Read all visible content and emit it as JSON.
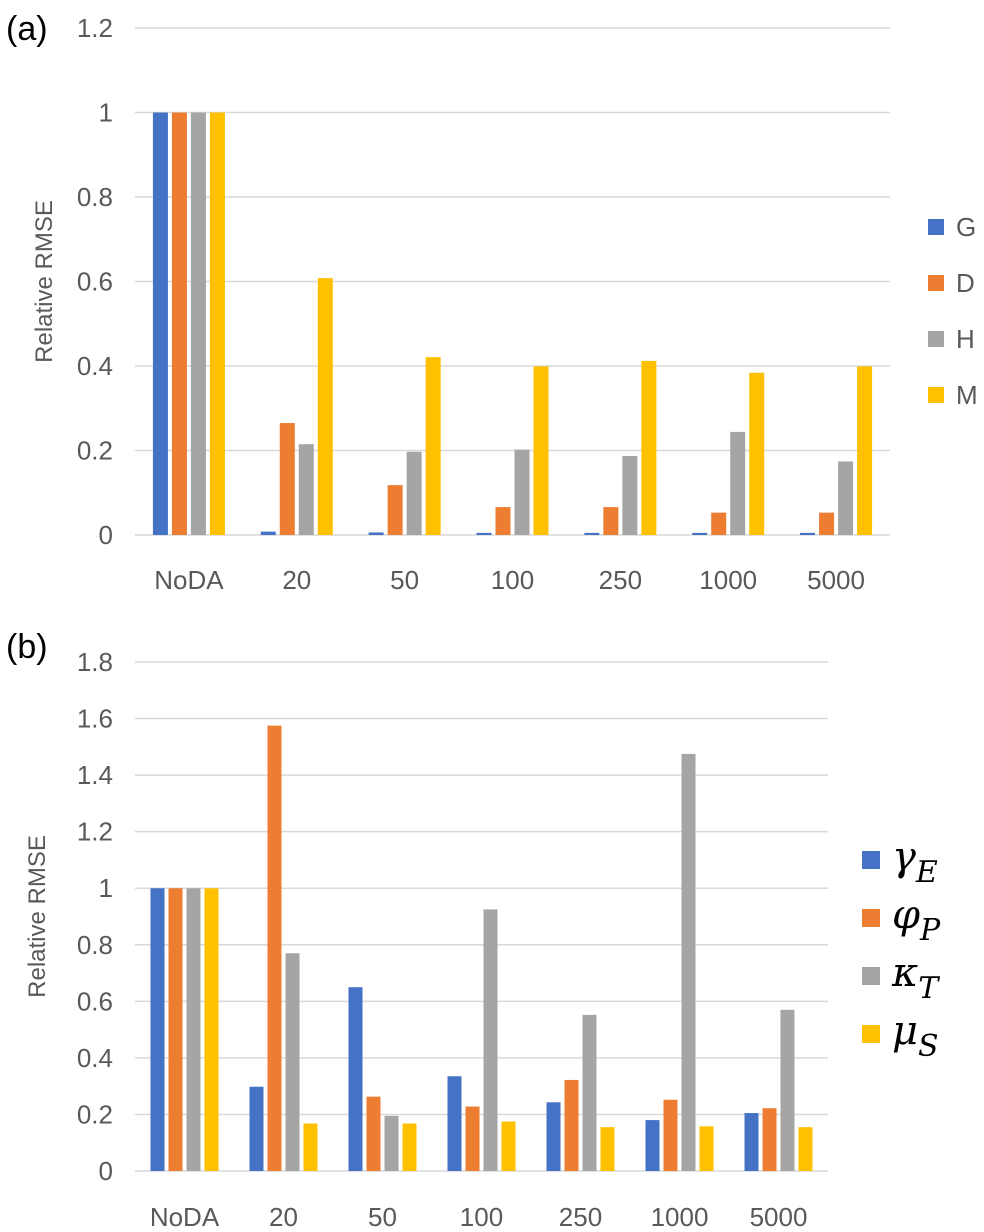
{
  "chart_data": [
    {
      "panel_label": "(a)",
      "type": "bar",
      "ylabel": "Relative RMSE",
      "xlabel": "",
      "ylim": [
        0,
        1.2
      ],
      "yticks": [
        "0",
        "0.2",
        "0.4",
        "0.6",
        "0.8",
        "1",
        "1.2"
      ],
      "categories": [
        "NoDA",
        "20",
        "50",
        "100",
        "250",
        "1000",
        "5000"
      ],
      "grid": "horizontal",
      "legend_position": "right",
      "series": [
        {
          "name": "G",
          "color": "#4472C4",
          "values": [
            1.0,
            0.008,
            0.006,
            0.005,
            0.005,
            0.005,
            0.005
          ]
        },
        {
          "name": "D",
          "color": "#ED7D31",
          "values": [
            1.0,
            0.265,
            0.118,
            0.066,
            0.066,
            0.053,
            0.053
          ]
        },
        {
          "name": "H",
          "color": "#A5A5A5",
          "values": [
            1.0,
            0.215,
            0.197,
            0.202,
            0.187,
            0.244,
            0.174
          ]
        },
        {
          "name": "M",
          "color": "#FFC000",
          "values": [
            1.0,
            0.608,
            0.421,
            0.399,
            0.412,
            0.384,
            0.399
          ]
        }
      ]
    },
    {
      "panel_label": "(b)",
      "type": "bar",
      "ylabel": "Relative RMSE",
      "xlabel": "",
      "ylim": [
        0,
        1.8
      ],
      "yticks": [
        "0",
        "0.2",
        "0.4",
        "0.6",
        "0.8",
        "1",
        "1.2",
        "1.4",
        "1.6",
        "1.8"
      ],
      "categories": [
        "NoDA",
        "20",
        "50",
        "100",
        "250",
        "1000",
        "5000"
      ],
      "grid": "horizontal",
      "legend_position": "right",
      "series": [
        {
          "name": "γ",
          "sub": "E",
          "color": "#4472C4",
          "values": [
            1.0,
            0.298,
            0.65,
            0.335,
            0.243,
            0.18,
            0.205
          ]
        },
        {
          "name": "φ",
          "sub": "P",
          "color": "#ED7D31",
          "values": [
            1.0,
            1.575,
            0.263,
            0.228,
            0.322,
            0.252,
            0.222
          ]
        },
        {
          "name": "κ",
          "sub": "T",
          "color": "#A5A5A5",
          "values": [
            1.0,
            0.77,
            0.195,
            0.925,
            0.552,
            1.475,
            0.57
          ]
        },
        {
          "name": "μ",
          "sub": "S",
          "color": "#FFC000",
          "values": [
            1.0,
            0.168,
            0.168,
            0.175,
            0.155,
            0.158,
            0.155
          ]
        }
      ]
    }
  ]
}
